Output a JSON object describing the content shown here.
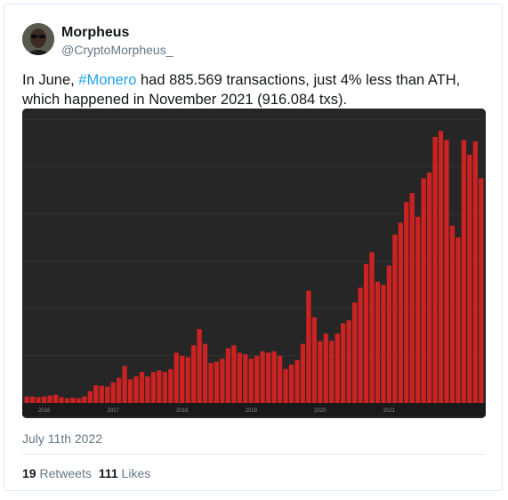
{
  "tweet": {
    "author_name": "Morpheus",
    "author_handle": "@CryptoMorpheus_",
    "text_before": "In June, ",
    "hashtag": "#Monero",
    "text_after": " had 885.569 transactions, just 4% less than ATH, which happened in November 2021 (916.084 txs).",
    "date": "July 11th 2022",
    "retweets_count": "19",
    "retweets_label": "Retweets",
    "likes_count": "111",
    "likes_label": "Likes"
  },
  "colors": {
    "accent": "#1da1f2",
    "bar": "#cc2222",
    "chart_bg": "#262626"
  },
  "chart_data": {
    "type": "bar",
    "x_tick_labels": [
      "2016",
      "2017",
      "2018",
      "2019",
      "2020",
      "2021"
    ],
    "first_tick_index": 3,
    "months_per_tick": 12,
    "ylim": [
      0,
      960000
    ],
    "values": [
      22000,
      22000,
      20000,
      22000,
      25000,
      28000,
      20000,
      16000,
      18000,
      16000,
      22000,
      40000,
      60000,
      58000,
      55000,
      70000,
      85000,
      125000,
      80000,
      90000,
      105000,
      90000,
      105000,
      110000,
      105000,
      115000,
      170000,
      160000,
      155000,
      195000,
      250000,
      200000,
      135000,
      140000,
      150000,
      185000,
      195000,
      170000,
      165000,
      150000,
      160000,
      175000,
      170000,
      175000,
      160000,
      115000,
      130000,
      145000,
      200000,
      380000,
      290000,
      210000,
      235000,
      210000,
      235000,
      270000,
      280000,
      340000,
      390000,
      470000,
      510000,
      410000,
      400000,
      465000,
      570000,
      610000,
      680000,
      710000,
      630000,
      760000,
      780000,
      900000,
      920000,
      890000,
      600000,
      560000,
      890000,
      840000,
      885000,
      760000
    ],
    "title": "",
    "xlabel": "",
    "ylabel": "",
    "grid": true
  }
}
